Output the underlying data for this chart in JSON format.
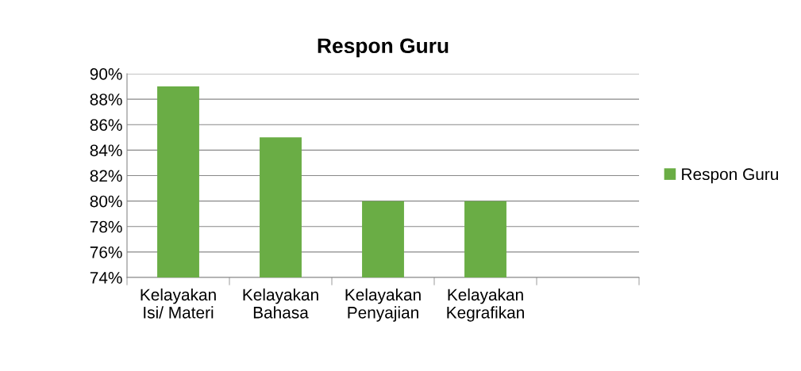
{
  "chart_data": {
    "type": "bar",
    "title": "Respon Guru",
    "categories": [
      "Kelayakan\nIsi/ Materi",
      "Kelayakan\nBahasa",
      "Kelayakan\nPenyajian",
      "Kelayakan\nKegrafikan",
      null
    ],
    "series": [
      {
        "name": "Respon Guru",
        "color": "#6aad45",
        "values": [
          89,
          85,
          80,
          80,
          null
        ]
      }
    ],
    "ylim": [
      74,
      90
    ],
    "yticks": [
      {
        "value": 74,
        "label": "74%"
      },
      {
        "value": 76,
        "label": "76%"
      },
      {
        "value": 78,
        "label": "78%"
      },
      {
        "value": 80,
        "label": "80%"
      },
      {
        "value": 82,
        "label": "82%"
      },
      {
        "value": 84,
        "label": "84%"
      },
      {
        "value": 86,
        "label": "86%"
      },
      {
        "value": 88,
        "label": "88%"
      },
      {
        "value": 90,
        "label": "90%"
      }
    ],
    "grid": "y",
    "legend": "right"
  }
}
